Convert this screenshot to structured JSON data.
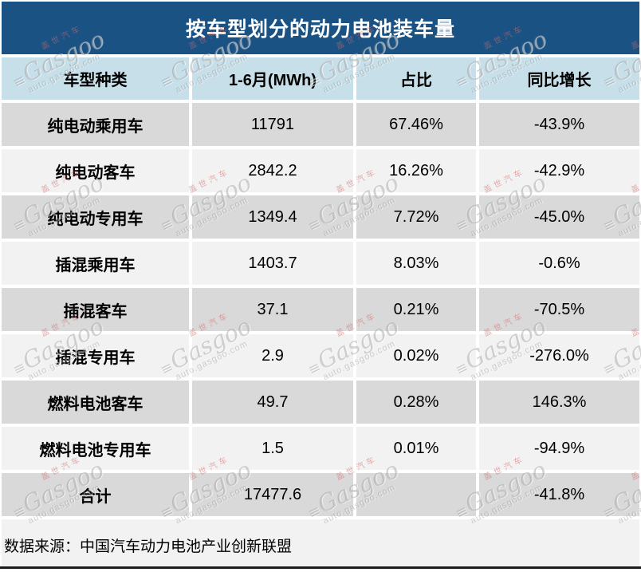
{
  "title": "按车型划分的动力电池装车量",
  "table": {
    "columns": [
      "车型种类",
      "1-6月(MWh)",
      "占比",
      "同比增长"
    ],
    "rows": [
      {
        "label": "纯电动乘用车",
        "mwh": "11791",
        "share": "67.46%",
        "yoy": "-43.9%"
      },
      {
        "label": "纯电动客车",
        "mwh": "2842.2",
        "share": "16.26%",
        "yoy": "-42.9%"
      },
      {
        "label": "纯电动专用车",
        "mwh": "1349.4",
        "share": "7.72%",
        "yoy": "-45.0%"
      },
      {
        "label": "插混乘用车",
        "mwh": "1403.7",
        "share": "8.03%",
        "yoy": "-0.6%"
      },
      {
        "label": "插混客车",
        "mwh": "37.1",
        "share": "0.21%",
        "yoy": "-70.5%"
      },
      {
        "label": "插混专用车",
        "mwh": "2.9",
        "share": "0.02%",
        "yoy": "-276.0%"
      },
      {
        "label": "燃料电池客车",
        "mwh": "49.7",
        "share": "0.28%",
        "yoy": "146.3%"
      },
      {
        "label": "燃料电池专用车",
        "mwh": "1.5",
        "share": "0.01%",
        "yoy": "-94.9%"
      },
      {
        "label": "合计",
        "mwh": "17477.6",
        "share": "",
        "yoy": "-41.8%"
      }
    ]
  },
  "footer": {
    "source": "数据来源：中国汽车动力电池产业创新联盟"
  },
  "watermark": {
    "cn": "盖世汽车",
    "logo": "≡",
    "brand": "Gasgoo",
    "domain": "auto.gasgoo.com"
  },
  "colors": {
    "title_bg": "#1A5284",
    "title_text": "#FFFFFF",
    "header_bg": "#C6DFE9",
    "row_odd": "#D9D9D9",
    "row_even": "#F2F2F2",
    "footer_bg": "#F2F2F2",
    "body_text": "#000000",
    "bottom_line": "#1C1C1C",
    "separator": "#FFFFFF"
  },
  "chart_data": {
    "type": "table",
    "title": "按车型划分的动力电池装车量",
    "columns": [
      "车型种类",
      "1-6月(MWh)",
      "占比",
      "同比增长"
    ],
    "rows": [
      [
        "纯电动乘用车",
        11791,
        "67.46%",
        "-43.9%"
      ],
      [
        "纯电动客车",
        2842.2,
        "16.26%",
        "-42.9%"
      ],
      [
        "纯电动专用车",
        1349.4,
        "7.72%",
        "-45.0%"
      ],
      [
        "插混乘用车",
        1403.7,
        "8.03%",
        "-0.6%"
      ],
      [
        "插混客车",
        37.1,
        "0.21%",
        "-70.5%"
      ],
      [
        "插混专用车",
        2.9,
        "0.02%",
        "-276.0%"
      ],
      [
        "燃料电池客车",
        49.7,
        "0.28%",
        "146.3%"
      ],
      [
        "燃料电池专用车",
        1.5,
        "0.01%",
        "-94.9%"
      ],
      [
        "合计",
        17477.6,
        "",
        "-41.8%"
      ]
    ],
    "units": "MWh",
    "source": "数据来源：中国汽车动力电池产业创新联盟"
  }
}
